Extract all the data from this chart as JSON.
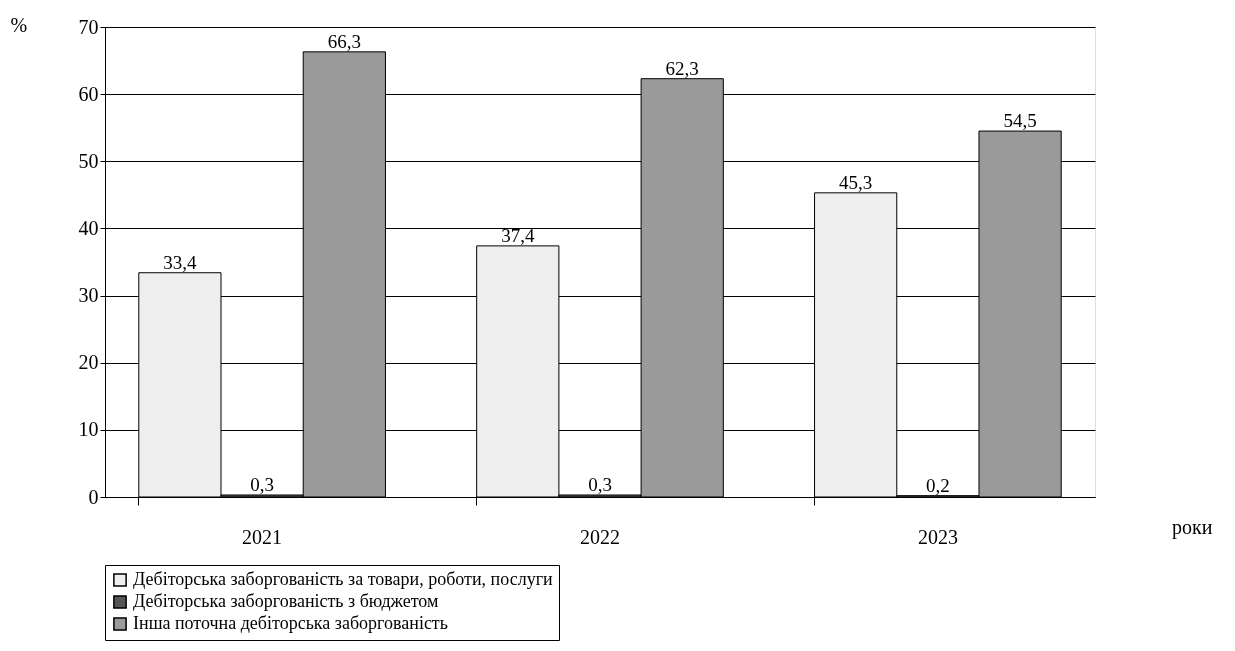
{
  "chart_data": {
    "type": "bar",
    "xlabel": "роки",
    "ylabel": "%",
    "categories": [
      "2021",
      "2022",
      "2023"
    ],
    "series": [
      {
        "name": "Дебіторська заборгованість за товари, роботи, послуги",
        "color": "#eeeeee",
        "values": [
          33.4,
          37.4,
          45.3
        ],
        "value_labels": [
          "33,4",
          "37,4",
          "45,3"
        ]
      },
      {
        "name": "Дебіторська заборгованість з бюджетом",
        "color": "#555555",
        "values": [
          0.3,
          0.3,
          0.2
        ],
        "value_labels": [
          "0,3",
          "0,3",
          "0,2"
        ]
      },
      {
        "name": "Інша поточна дебіторська заборгованість",
        "color": "#9a9a9a",
        "values": [
          66.3,
          62.3,
          54.5
        ],
        "value_labels": [
          "66,3",
          "62,3",
          "54,5"
        ]
      }
    ],
    "ylim": [
      0,
      70
    ],
    "yticks": [
      0,
      10,
      20,
      30,
      40,
      50,
      60,
      70
    ],
    "grid": "y",
    "legend": "bottom"
  }
}
